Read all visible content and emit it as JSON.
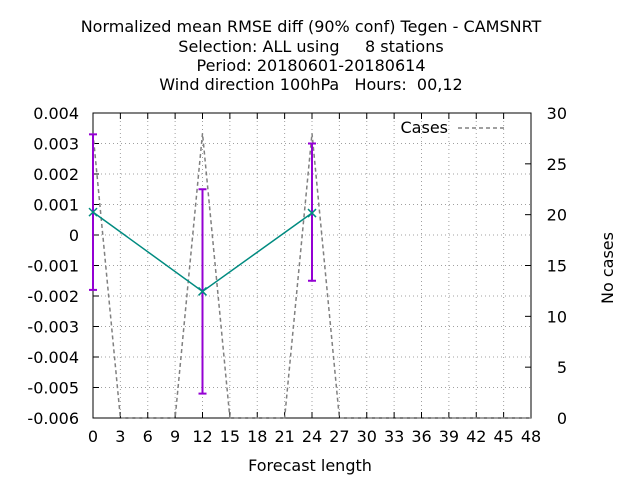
{
  "chart_data": {
    "type": "line",
    "title_lines": [
      "Normalized mean RMSE diff (90% conf) Tegen - CAMSNRT",
      "Selection: ALL using     8 stations",
      "Period: 20180601-20180614",
      "Wind direction 100hPa   Hours:  00,12"
    ],
    "xlabel": "Forecast length",
    "ylabel": "",
    "y2label": "No cases",
    "xlim": [
      0,
      48
    ],
    "ylim": [
      -0.006,
      0.004
    ],
    "y2lim": [
      0,
      30
    ],
    "grid": true,
    "legend_position": "top-right",
    "x_ticks": [
      "0",
      "3",
      "6",
      "9",
      "12",
      "15",
      "18",
      "21",
      "24",
      "27",
      "30",
      "33",
      "36",
      "39",
      "42",
      "45",
      "48"
    ],
    "y_ticks": [
      "0.004",
      "0.003",
      "0.002",
      "0.001",
      "0",
      "-0.001",
      "-0.002",
      "-0.003",
      "-0.004",
      "-0.005",
      "-0.006"
    ],
    "y2_ticks": [
      "30",
      "25",
      "20",
      "15",
      "10",
      "5",
      "0"
    ],
    "series": [
      {
        "type": "errorbar-line",
        "color": "#008b80",
        "error_color": "#9400d3",
        "points": [
          {
            "x": 0,
            "y": 0.00075,
            "low": -0.0018,
            "high": 0.0033
          },
          {
            "x": 12,
            "y": -0.00185,
            "low": -0.0052,
            "high": 0.0015
          },
          {
            "x": 24,
            "y": 0.00072,
            "low": -0.0015,
            "high": 0.003
          }
        ]
      },
      {
        "name": "Cases",
        "type": "line",
        "axis": "y2",
        "color": "#808080",
        "dashed": true,
        "x": [
          0,
          3,
          9,
          12,
          15,
          21,
          24,
          27,
          48
        ],
        "values": [
          28,
          0,
          0,
          28,
          0,
          0,
          28,
          0,
          0
        ]
      }
    ]
  }
}
